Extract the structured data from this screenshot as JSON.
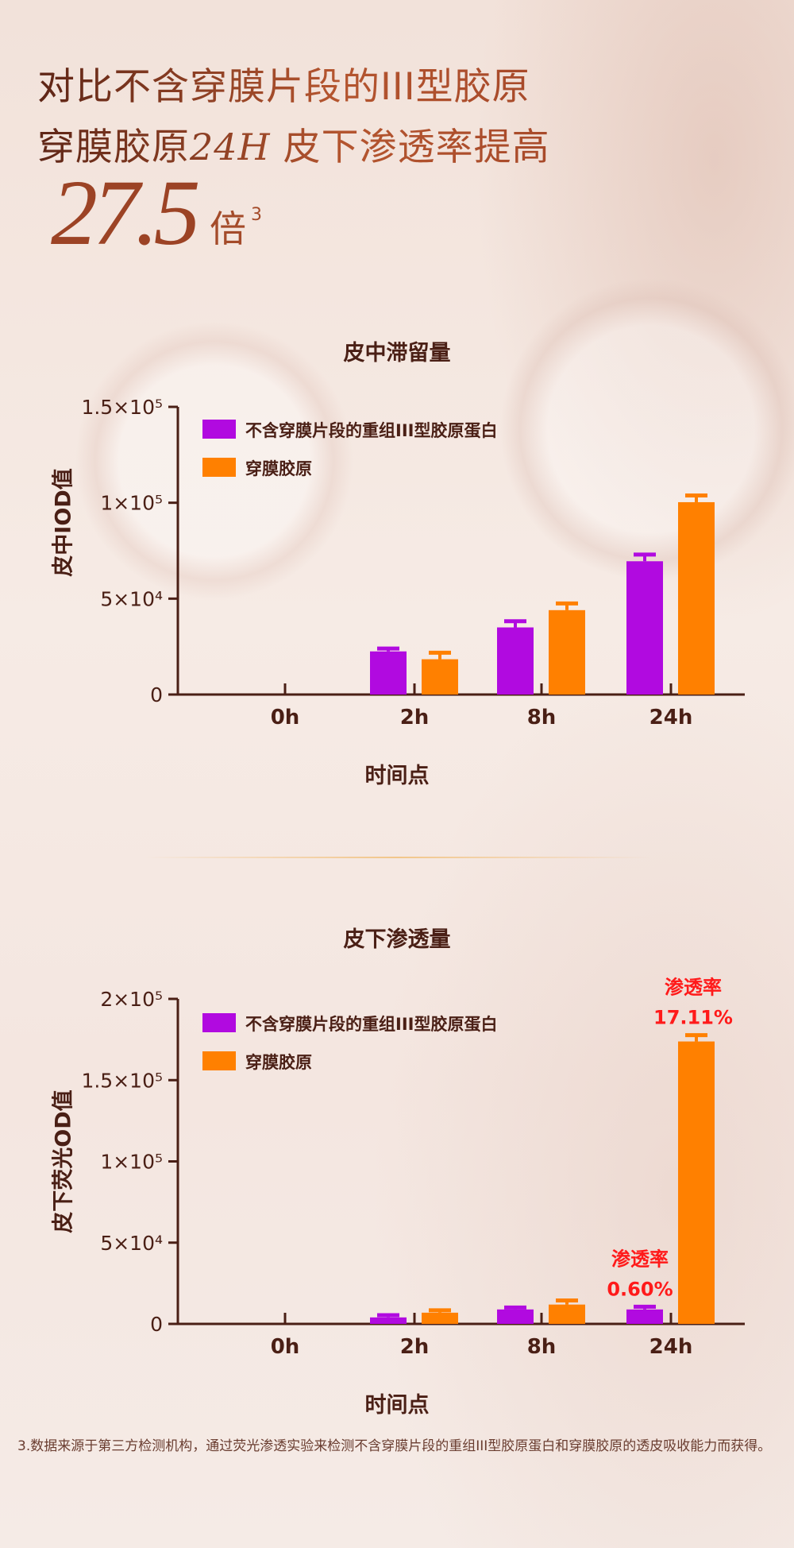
{
  "header": {
    "line1": "对比不含穿膜片段的III型胶原",
    "line2_a": "穿膜胶原",
    "line2_b": "24H",
    "line2_c": "皮下渗透率提高",
    "big_number": "27.5",
    "unit": "倍",
    "footnote_ref": "3"
  },
  "colors": {
    "purple": "#b10ae0",
    "orange": "#ff8000",
    "axis": "#4a1f15",
    "annotation": "#ff1a1a"
  },
  "chart_data": [
    {
      "type": "bar",
      "title": "皮中滞留量",
      "xlabel": "时间点",
      "ylabel": "皮中IOD值",
      "categories": [
        "0h",
        "2h",
        "8h",
        "24h"
      ],
      "ylim": [
        0,
        150000
      ],
      "yticks": [
        {
          "value": 0,
          "label": "0"
        },
        {
          "value": 50000,
          "label": "5×10⁴"
        },
        {
          "value": 100000,
          "label": "1×10⁵"
        },
        {
          "value": 150000,
          "label": "1.5×10⁵"
        }
      ],
      "legend": "top-left",
      "grid": false,
      "series": [
        {
          "name": "不含穿膜片段的重组III型胶原蛋白",
          "color": "#b10ae0",
          "values": [
            0,
            22500,
            35000,
            69500
          ],
          "errors": [
            0,
            1500,
            3200,
            3500
          ]
        },
        {
          "name": "穿膜胶原",
          "color": "#ff8000",
          "values": [
            0,
            18400,
            44000,
            100300
          ],
          "errors": [
            0,
            3400,
            3500,
            3500
          ]
        }
      ],
      "annotations": []
    },
    {
      "type": "bar",
      "title": "皮下渗透量",
      "xlabel": "时间点",
      "ylabel": "皮下荧光OD值",
      "categories": [
        "0h",
        "2h",
        "8h",
        "24h"
      ],
      "ylim": [
        0,
        200000
      ],
      "yticks": [
        {
          "value": 0,
          "label": "0"
        },
        {
          "value": 50000,
          "label": "5×10⁴"
        },
        {
          "value": 100000,
          "label": "1×10⁵"
        },
        {
          "value": 150000,
          "label": "1.5×10⁵"
        },
        {
          "value": 200000,
          "label": "2×10⁵"
        }
      ],
      "legend": "top-left",
      "grid": false,
      "series": [
        {
          "name": "不含穿膜片段的重组III型胶原蛋白",
          "color": "#b10ae0",
          "values": [
            0,
            4000,
            8900,
            8900
          ],
          "errors": [
            0,
            1400,
            1200,
            1700
          ]
        },
        {
          "name": "穿膜胶原",
          "color": "#ff8000",
          "values": [
            0,
            6900,
            11900,
            173800
          ],
          "errors": [
            0,
            1500,
            2500,
            3900
          ]
        }
      ],
      "annotations": [
        {
          "category": "24h",
          "series": 0,
          "line1": "渗透率",
          "line2": "0.60%"
        },
        {
          "category": "24h",
          "series": 1,
          "line1": "渗透率",
          "line2": "17.11%"
        }
      ]
    }
  ],
  "footnote": "3.数据来源于第三方检测机构，通过荧光渗透实验来检测不含穿膜片段的重组III型胶原蛋白和穿膜胶原的透皮吸收能力而获得。"
}
